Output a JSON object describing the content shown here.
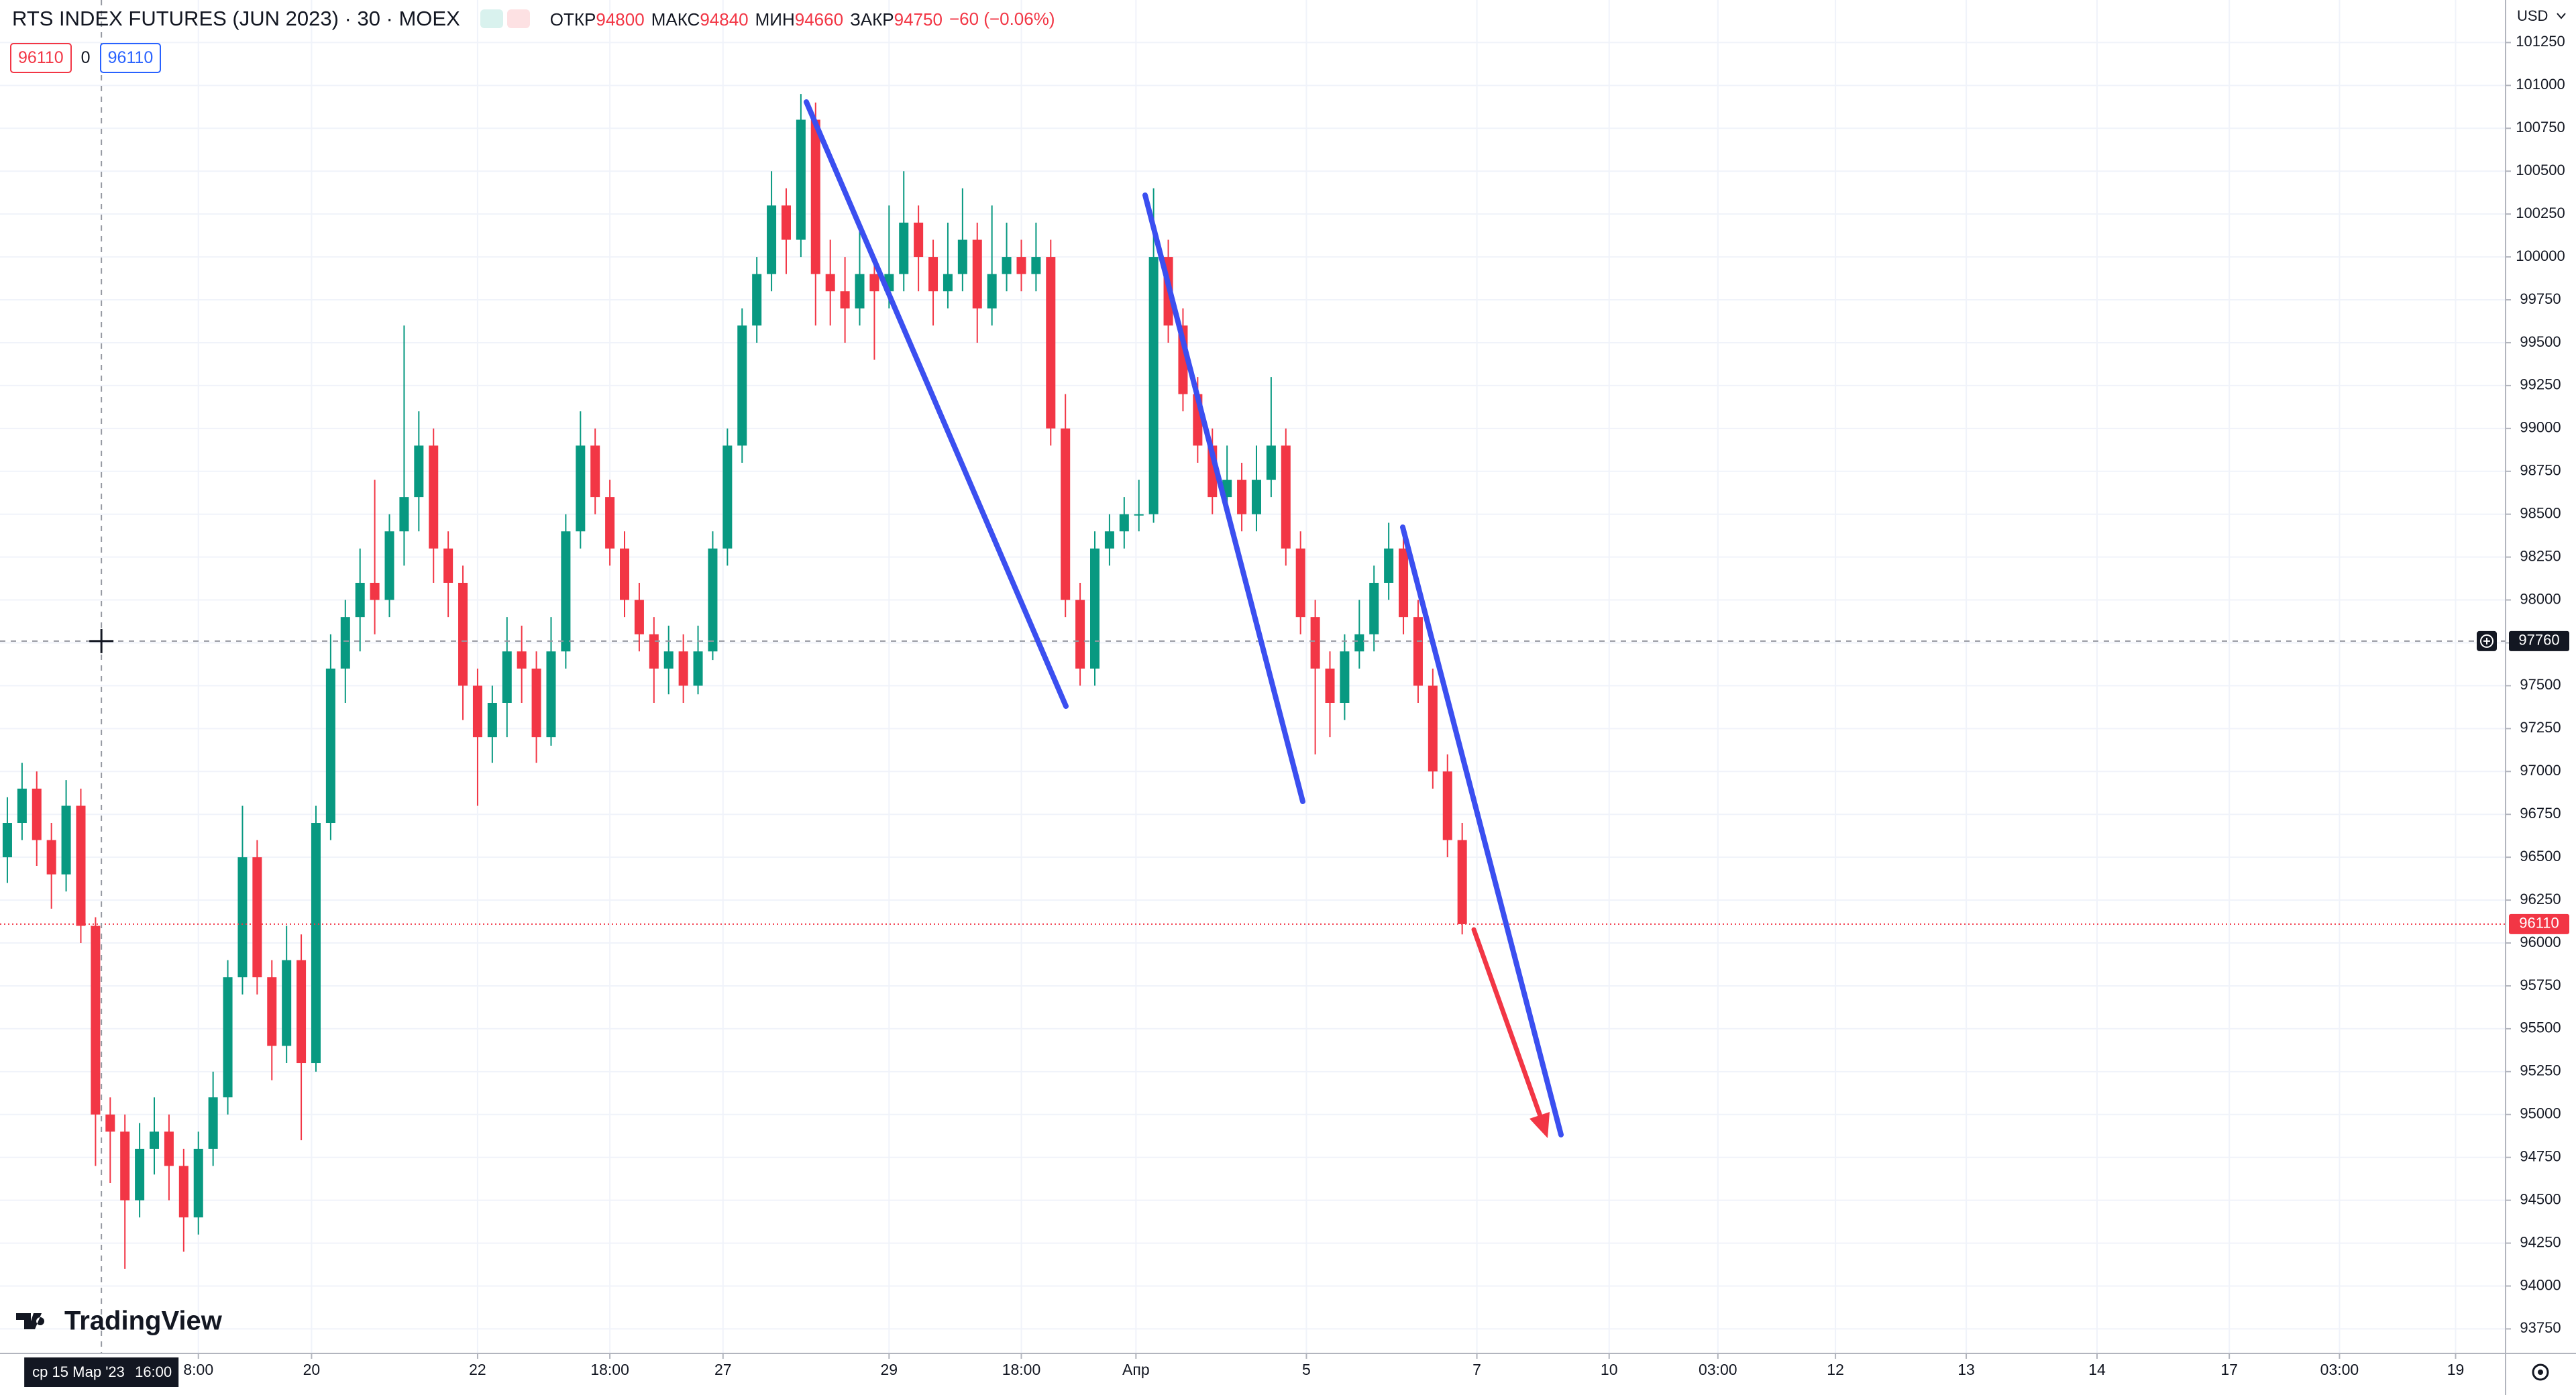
{
  "chart_data": {
    "type": "candlestick",
    "title": "RTS INDEX FUTURES (JUN 2023) · 30 · MOEX",
    "ohlc": [
      {
        "label": "ОТКР",
        "value": 94800
      },
      {
        "label": "МАКС",
        "value": 94840
      },
      {
        "label": "МИН",
        "value": 94660
      },
      {
        "label": "ЗАКР",
        "value": 94750
      }
    ],
    "change": "−60 (−0.06%)",
    "bid": 96110,
    "spread": 0,
    "ask": 96110,
    "currency": "USD",
    "last_price": 96110,
    "crosshair": {
      "price": 97760,
      "x": 6.4,
      "date": "ср 15 Мар '23",
      "time": "16:00"
    },
    "logo": "TradingView",
    "up_color": "#089981",
    "down_color": "#f23645",
    "candles": [
      [
        96500,
        96850,
        96350,
        96700
      ],
      [
        96700,
        97050,
        96600,
        96900
      ],
      [
        96900,
        97000,
        96450,
        96600
      ],
      [
        96600,
        96700,
        96200,
        96400
      ],
      [
        96400,
        96950,
        96300,
        96800
      ],
      [
        96800,
        96900,
        96000,
        96100
      ],
      [
        96100,
        96150,
        94700,
        95000
      ],
      [
        95000,
        95100,
        94600,
        94900
      ],
      [
        94900,
        95000,
        94100,
        94500
      ],
      [
        94500,
        94950,
        94400,
        94800
      ],
      [
        94800,
        95100,
        94650,
        94900
      ],
      [
        94900,
        95000,
        94500,
        94700
      ],
      [
        94700,
        94800,
        94200,
        94400
      ],
      [
        94400,
        94900,
        94300,
        94800
      ],
      [
        94800,
        95250,
        94700,
        95100
      ],
      [
        95100,
        95900,
        95000,
        95800
      ],
      [
        95800,
        96800,
        95700,
        96500
      ],
      [
        96500,
        96600,
        95700,
        95800
      ],
      [
        95800,
        95900,
        95200,
        95400
      ],
      [
        95400,
        96100,
        95300,
        95900
      ],
      [
        95900,
        96050,
        94850,
        95300
      ],
      [
        95300,
        96800,
        95250,
        96700
      ],
      [
        96700,
        97800,
        96600,
        97600
      ],
      [
        97600,
        98000,
        97400,
        97900
      ],
      [
        97900,
        98300,
        97700,
        98100
      ],
      [
        98100,
        98700,
        97800,
        98000
      ],
      [
        98000,
        98500,
        97900,
        98400
      ],
      [
        98400,
        99600,
        98200,
        98600
      ],
      [
        98600,
        99100,
        98400,
        98900
      ],
      [
        98900,
        99000,
        98100,
        98300
      ],
      [
        98300,
        98400,
        97900,
        98100
      ],
      [
        98100,
        98200,
        97300,
        97500
      ],
      [
        97500,
        97600,
        96800,
        97200
      ],
      [
        97200,
        97500,
        97050,
        97400
      ],
      [
        97400,
        97900,
        97200,
        97700
      ],
      [
        97700,
        97850,
        97400,
        97600
      ],
      [
        97600,
        97700,
        97050,
        97200
      ],
      [
        97200,
        97900,
        97150,
        97700
      ],
      [
        97700,
        98500,
        97600,
        98400
      ],
      [
        98400,
        99100,
        98300,
        98900
      ],
      [
        98900,
        99000,
        98500,
        98600
      ],
      [
        98600,
        98700,
        98200,
        98300
      ],
      [
        98300,
        98400,
        97900,
        98000
      ],
      [
        98000,
        98100,
        97700,
        97800
      ],
      [
        97800,
        97900,
        97400,
        97600
      ],
      [
        97600,
        97850,
        97450,
        97700
      ],
      [
        97700,
        97800,
        97400,
        97500
      ],
      [
        97500,
        97850,
        97450,
        97700
      ],
      [
        97700,
        98400,
        97650,
        98300
      ],
      [
        98300,
        99000,
        98200,
        98900
      ],
      [
        98900,
        99700,
        98800,
        99600
      ],
      [
        99600,
        100000,
        99500,
        99900
      ],
      [
        99900,
        100500,
        99800,
        100300
      ],
      [
        100300,
        100400,
        99900,
        100100
      ],
      [
        100100,
        100950,
        100000,
        100800
      ],
      [
        100800,
        100900,
        99600,
        99900
      ],
      [
        99900,
        100100,
        99600,
        99800
      ],
      [
        99800,
        100000,
        99500,
        99700
      ],
      [
        99700,
        100200,
        99600,
        99900
      ],
      [
        99900,
        100000,
        99400,
        99800
      ],
      [
        99800,
        100300,
        99700,
        99900
      ],
      [
        99900,
        100500,
        99800,
        100200
      ],
      [
        100200,
        100300,
        99800,
        100000
      ],
      [
        100000,
        100100,
        99600,
        99800
      ],
      [
        99800,
        100200,
        99700,
        99900
      ],
      [
        99900,
        100400,
        99800,
        100100
      ],
      [
        100100,
        100200,
        99500,
        99700
      ],
      [
        99700,
        100300,
        99600,
        99900
      ],
      [
        99900,
        100200,
        99800,
        100000
      ],
      [
        100000,
        100100,
        99800,
        99900
      ],
      [
        99900,
        100200,
        99800,
        100000
      ],
      [
        100000,
        100100,
        98900,
        99000
      ],
      [
        99000,
        99200,
        97900,
        98000
      ],
      [
        98000,
        98100,
        97500,
        97600
      ],
      [
        97600,
        98400,
        97500,
        98300
      ],
      [
        98300,
        98500,
        98200,
        98400
      ],
      [
        98400,
        98600,
        98300,
        98500
      ],
      [
        98500,
        98700,
        98400,
        98500
      ],
      [
        98500,
        100400,
        98450,
        100000
      ],
      [
        100000,
        100100,
        99500,
        99600
      ],
      [
        99600,
        99700,
        99100,
        99200
      ],
      [
        99200,
        99300,
        98800,
        98900
      ],
      [
        98900,
        99000,
        98500,
        98600
      ],
      [
        98600,
        98900,
        98500,
        98700
      ],
      [
        98700,
        98800,
        98400,
        98500
      ],
      [
        98500,
        98900,
        98400,
        98700
      ],
      [
        98700,
        99300,
        98600,
        98900
      ],
      [
        98900,
        99000,
        98200,
        98300
      ],
      [
        98300,
        98400,
        97800,
        97900
      ],
      [
        97900,
        98000,
        97100,
        97600
      ],
      [
        97600,
        97700,
        97200,
        97400
      ],
      [
        97400,
        97800,
        97300,
        97700
      ],
      [
        97700,
        98000,
        97600,
        97800
      ],
      [
        97800,
        98200,
        97700,
        98100
      ],
      [
        98100,
        98450,
        98000,
        98300
      ],
      [
        98300,
        98400,
        97800,
        97900
      ],
      [
        97900,
        98000,
        97400,
        97500
      ],
      [
        97500,
        97600,
        96900,
        97000
      ],
      [
        97000,
        97100,
        96500,
        96600
      ],
      [
        96600,
        96700,
        96050,
        96110
      ]
    ],
    "xlim": [
      -0.5,
      170
    ],
    "xticks": [
      {
        "value": 13,
        "label": "8:00"
      },
      {
        "value": 20.7,
        "label": "20"
      },
      {
        "value": 32,
        "label": "22"
      },
      {
        "value": 41,
        "label": "18:00"
      },
      {
        "value": 48.7,
        "label": "27"
      },
      {
        "value": 60,
        "label": "29"
      },
      {
        "value": 69,
        "label": "18:00"
      },
      {
        "value": 76.8,
        "label": "Апр"
      },
      {
        "value": 88.4,
        "label": "5"
      },
      {
        "value": 100,
        "label": "7"
      },
      {
        "value": 109,
        "label": "10"
      },
      {
        "value": 116.4,
        "label": "03:00"
      },
      {
        "value": 124.4,
        "label": "12"
      },
      {
        "value": 133.3,
        "label": "13"
      },
      {
        "value": 142.2,
        "label": "14"
      },
      {
        "value": 151.2,
        "label": "17"
      },
      {
        "value": 158.7,
        "label": "03:00"
      },
      {
        "value": 166.6,
        "label": "19"
      }
    ],
    "ylim": [
      93607,
      101498
    ],
    "yticks": [
      93750,
      94000,
      94250,
      94500,
      94750,
      95000,
      95250,
      95500,
      95750,
      96000,
      96250,
      96500,
      96750,
      97000,
      97250,
      97500,
      97750,
      98000,
      98250,
      98500,
      98750,
      99000,
      99250,
      99500,
      99750,
      100000,
      100250,
      100500,
      100750,
      101000,
      101250
    ],
    "grid": true
  }
}
